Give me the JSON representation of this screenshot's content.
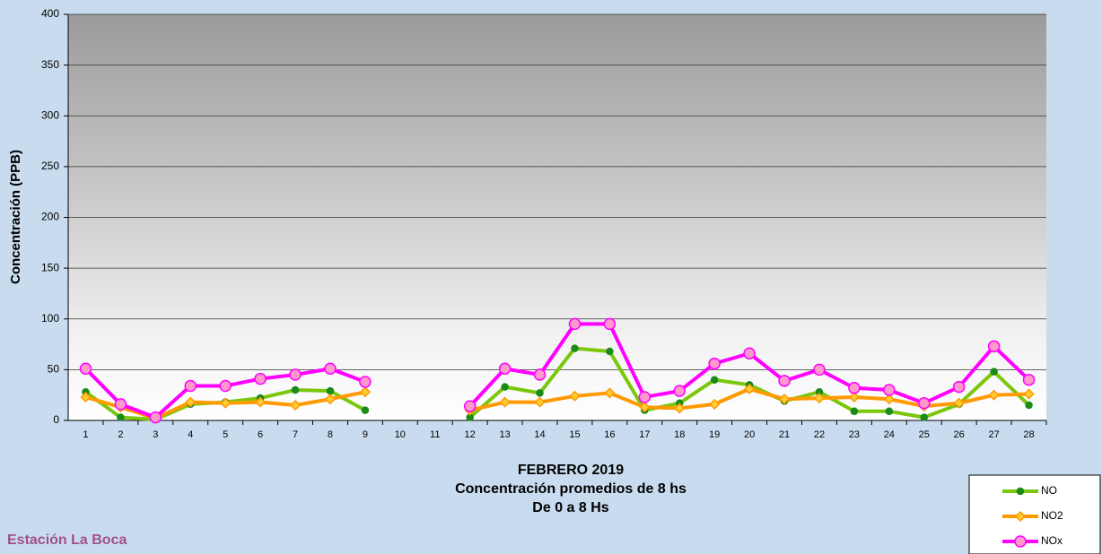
{
  "chart_data": {
    "type": "line",
    "title": "FEBRERO 2019",
    "subtitle": [
      "Concentración promedios de 8 hs",
      "De 0 a 8 Hs"
    ],
    "annotation": "Estación La Boca",
    "y_label": "Concentración  (PPB)",
    "categories": [
      "1",
      "2",
      "3",
      "4",
      "5",
      "6",
      "7",
      "8",
      "9",
      "10",
      "11",
      "12",
      "13",
      "14",
      "15",
      "16",
      "17",
      "18",
      "19",
      "20",
      "21",
      "22",
      "23",
      "24",
      "25",
      "26",
      "27",
      "28"
    ],
    "series": [
      {
        "name": "NO",
        "color": "#7ac70c",
        "marker_color": "#1a8a1a",
        "marker": "dot",
        "values": [
          28,
          3,
          1,
          16,
          18,
          22,
          30,
          29,
          10,
          null,
          null,
          3,
          33,
          27,
          71,
          68,
          10,
          17,
          40,
          35,
          19,
          28,
          9,
          9,
          3,
          16,
          48,
          15
        ]
      },
      {
        "name": "NO2",
        "color": "#ff9900",
        "marker_color": "#ffcc33",
        "marker": "diamond",
        "values": [
          23,
          13,
          2,
          18,
          17,
          18,
          15,
          21,
          28,
          null,
          null,
          10,
          18,
          18,
          24,
          27,
          13,
          12,
          16,
          31,
          21,
          22,
          23,
          21,
          14,
          17,
          25,
          26
        ]
      },
      {
        "name": "NOx",
        "color": "#ff00ff",
        "marker_color": "#ff99cc",
        "marker": "circle",
        "values": [
          51,
          16,
          3,
          34,
          34,
          41,
          45,
          51,
          38,
          null,
          null,
          14,
          51,
          45,
          95,
          95,
          23,
          29,
          56,
          66,
          39,
          50,
          32,
          30,
          17,
          33,
          73,
          40
        ]
      }
    ],
    "ylim": [
      0,
      400
    ],
    "yticks": [
      0,
      50,
      100,
      150,
      200,
      250,
      300,
      350,
      400
    ],
    "grid": true
  }
}
